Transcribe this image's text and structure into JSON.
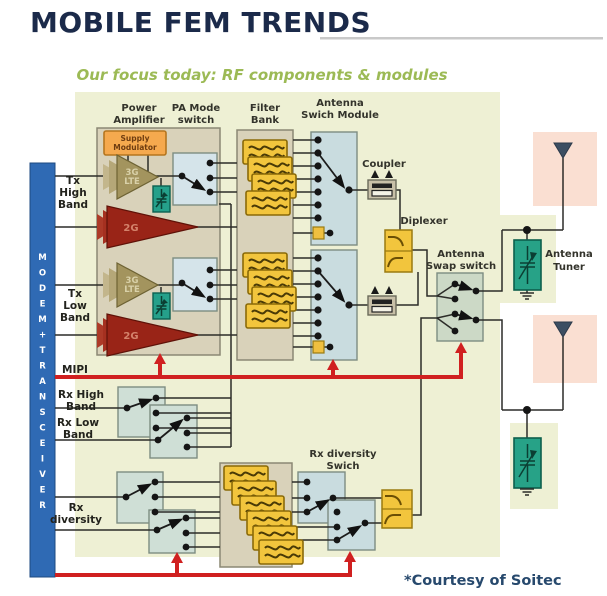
{
  "title": "MOBILE FEM TRENDS",
  "subtitle": "Our focus today: RF components & modules",
  "courtesy": "*Courtesy of Soitec",
  "modem_bar": {
    "text": "MODEM + TRANSCEIVER"
  },
  "labels": {
    "power_amplifier": [
      "Power",
      "Amplifier"
    ],
    "pa_mode_switch": [
      "PA Mode",
      "switch"
    ],
    "filter_bank": [
      "Filter",
      "Bank"
    ],
    "antenna_switch_module": [
      "Antenna",
      "Swich Module"
    ],
    "coupler": "Coupler",
    "diplexer": "Diplexer",
    "antenna_swap_switch": [
      "Antenna",
      "Swap switch"
    ],
    "antenna_tuner": [
      "Antenna",
      "Tuner"
    ],
    "rx_diversity_switch": [
      "Rx diversity",
      "Swich"
    ],
    "supply_modulator": [
      "Supply",
      "Modulator"
    ],
    "tx_high_band": [
      "Tx",
      "High",
      "Band"
    ],
    "tx_low_band": [
      "Tx",
      "Low",
      "Band"
    ],
    "mipi": "MIPI",
    "rx_high_band": [
      "Rx High",
      "Band"
    ],
    "rx_low_band": [
      "Rx Low",
      "Band"
    ],
    "rx_diversity": [
      "Rx",
      "diversity"
    ],
    "amp_3g": [
      "3G",
      "LTE"
    ],
    "amp_2g": "2G"
  },
  "colors": {
    "panel": "#eef0d4",
    "module_bg": "#d9d2ba",
    "switch_blue": "#d5e4ea",
    "asm_blue": "#c9dcdf",
    "rx_switch": "#cfdfd6",
    "swap_switch": "#ccd9c6",
    "filter_yellow": "#f2c53d",
    "supply_orange": "#f5a94e",
    "amp_tan": "#a3945e",
    "amp_red": "#992417",
    "teal": "#25a08a",
    "tuner_green": "#27a287",
    "salmon": "#fadfd2",
    "bar_blue": "#2f6ab4",
    "mipi_red": "#d02020",
    "title_navy": "#1b2a4a",
    "subtitle_green": "#9cba55",
    "antenna_dark": "#3c4e62"
  }
}
